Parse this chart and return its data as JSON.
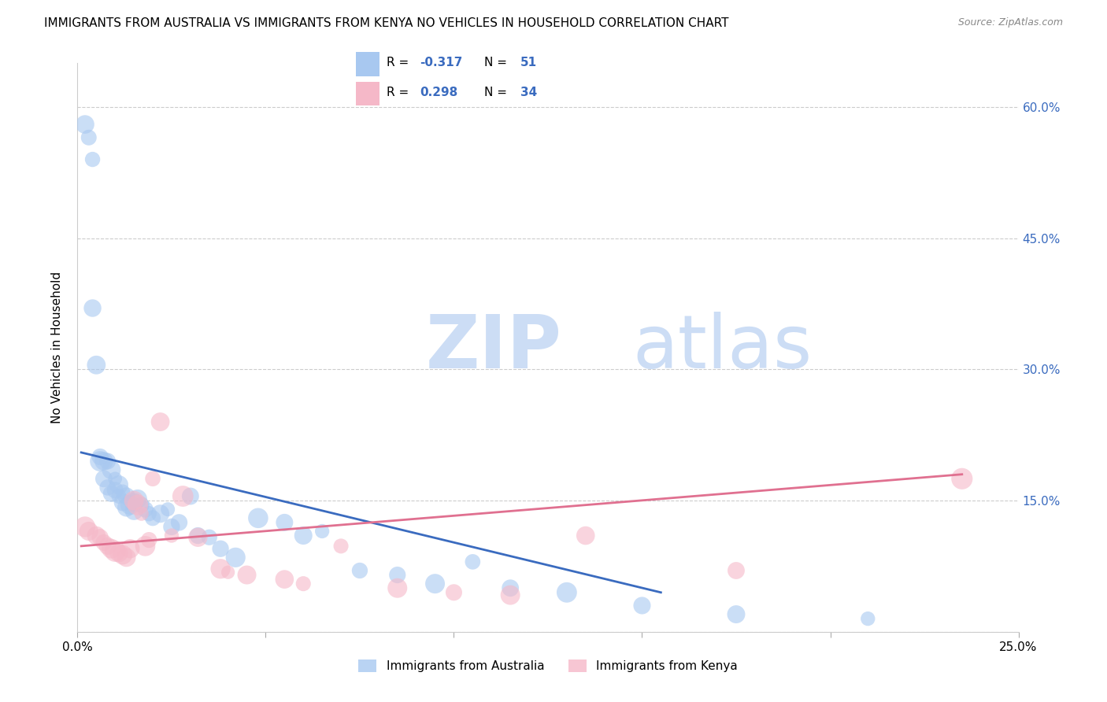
{
  "title": "IMMIGRANTS FROM AUSTRALIA VS IMMIGRANTS FROM KENYA NO VEHICLES IN HOUSEHOLD CORRELATION CHART",
  "source": "Source: ZipAtlas.com",
  "ylabel": "No Vehicles in Household",
  "xlim": [
    0.0,
    0.25
  ],
  "ylim": [
    0.0,
    0.65
  ],
  "yticks": [
    0.0,
    0.15,
    0.3,
    0.45,
    0.6
  ],
  "ytick_labels": [
    "",
    "15.0%",
    "30.0%",
    "45.0%",
    "60.0%"
  ],
  "xticks": [
    0.0,
    0.05,
    0.1,
    0.15,
    0.2,
    0.25
  ],
  "xtick_labels": [
    "0.0%",
    "",
    "",
    "",
    "",
    "25.0%"
  ],
  "australia_color": "#a8c8f0",
  "kenya_color": "#f5b8c8",
  "australia_line_color": "#3a6bbf",
  "kenya_line_color": "#e07090",
  "R_australia": -0.317,
  "N_australia": 51,
  "R_kenya": 0.298,
  "N_kenya": 34,
  "watermark_ZIP": "ZIP",
  "watermark_atlas": "atlas",
  "watermark_color": "#ccddf5",
  "background_color": "#ffffff",
  "grid_color": "#cccccc",
  "title_fontsize": 11,
  "australia_x": [
    0.002,
    0.003,
    0.004,
    0.004,
    0.005,
    0.006,
    0.006,
    0.007,
    0.007,
    0.008,
    0.008,
    0.009,
    0.009,
    0.01,
    0.01,
    0.011,
    0.011,
    0.012,
    0.012,
    0.013,
    0.013,
    0.014,
    0.015,
    0.015,
    0.016,
    0.017,
    0.018,
    0.019,
    0.02,
    0.022,
    0.024,
    0.025,
    0.027,
    0.03,
    0.032,
    0.035,
    0.038,
    0.042,
    0.048,
    0.055,
    0.06,
    0.065,
    0.075,
    0.085,
    0.095,
    0.105,
    0.115,
    0.13,
    0.15,
    0.175,
    0.21
  ],
  "australia_y": [
    0.58,
    0.565,
    0.54,
    0.37,
    0.305,
    0.2,
    0.195,
    0.195,
    0.175,
    0.195,
    0.165,
    0.185,
    0.158,
    0.175,
    0.162,
    0.168,
    0.155,
    0.16,
    0.148,
    0.155,
    0.142,
    0.145,
    0.148,
    0.138,
    0.152,
    0.145,
    0.14,
    0.135,
    0.13,
    0.135,
    0.14,
    0.12,
    0.125,
    0.155,
    0.11,
    0.108,
    0.095,
    0.085,
    0.13,
    0.125,
    0.11,
    0.115,
    0.07,
    0.065,
    0.055,
    0.08,
    0.05,
    0.045,
    0.03,
    0.02,
    0.015
  ],
  "kenya_x": [
    0.002,
    0.003,
    0.005,
    0.006,
    0.007,
    0.008,
    0.009,
    0.01,
    0.011,
    0.012,
    0.013,
    0.014,
    0.015,
    0.016,
    0.017,
    0.018,
    0.019,
    0.02,
    0.022,
    0.025,
    0.028,
    0.032,
    0.038,
    0.04,
    0.045,
    0.055,
    0.06,
    0.07,
    0.085,
    0.1,
    0.115,
    0.135,
    0.175,
    0.235
  ],
  "kenya_y": [
    0.12,
    0.115,
    0.11,
    0.108,
    0.102,
    0.098,
    0.095,
    0.092,
    0.09,
    0.088,
    0.085,
    0.095,
    0.15,
    0.145,
    0.135,
    0.098,
    0.105,
    0.175,
    0.24,
    0.11,
    0.155,
    0.108,
    0.072,
    0.068,
    0.065,
    0.06,
    0.055,
    0.098,
    0.05,
    0.045,
    0.042,
    0.11,
    0.07,
    0.175
  ],
  "aus_line_x0": 0.001,
  "aus_line_x1": 0.155,
  "aus_line_y0": 0.205,
  "aus_line_y1": 0.045,
  "ken_line_x0": 0.001,
  "ken_line_x1": 0.235,
  "ken_line_y0": 0.098,
  "ken_line_y1": 0.18
}
